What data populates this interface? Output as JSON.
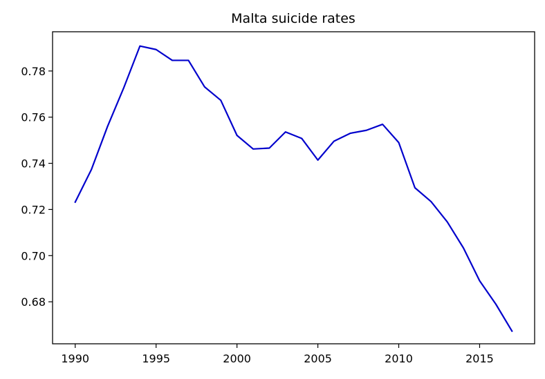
{
  "chart_data": {
    "type": "line",
    "title": "Malta suicide rates",
    "xlabel": "",
    "ylabel": "",
    "xlim": [
      1988.6,
      2018.4
    ],
    "ylim": [
      0.6618,
      0.797
    ],
    "xticks": [
      1990,
      1995,
      2000,
      2005,
      2010,
      2015
    ],
    "yticks": [
      0.68,
      0.7,
      0.72,
      0.74,
      0.76,
      0.78
    ],
    "xtick_labels": [
      "1990",
      "1995",
      "2000",
      "2005",
      "2010",
      "2015"
    ],
    "ytick_labels": [
      "0.68",
      "0.70",
      "0.72",
      "0.74",
      "0.76",
      "0.78"
    ],
    "grid": false,
    "legend": "none",
    "series": [
      {
        "color": "#0000cc",
        "x": [
          1990,
          1991,
          1992,
          1993,
          1994,
          1995,
          1996,
          1997,
          1998,
          1999,
          2000,
          2001,
          2002,
          2003,
          2004,
          2005,
          2006,
          2007,
          2008,
          2009,
          2010,
          2011,
          2012,
          2013,
          2014,
          2015,
          2016,
          2017
        ],
        "y": [
          0.7232,
          0.7373,
          0.756,
          0.7727,
          0.7908,
          0.7893,
          0.7846,
          0.7846,
          0.7731,
          0.7673,
          0.7521,
          0.7462,
          0.7466,
          0.7536,
          0.7508,
          0.7414,
          0.7496,
          0.753,
          0.7543,
          0.7569,
          0.749,
          0.7294,
          0.7234,
          0.7146,
          0.7033,
          0.6891,
          0.679,
          0.6673
        ]
      }
    ]
  }
}
